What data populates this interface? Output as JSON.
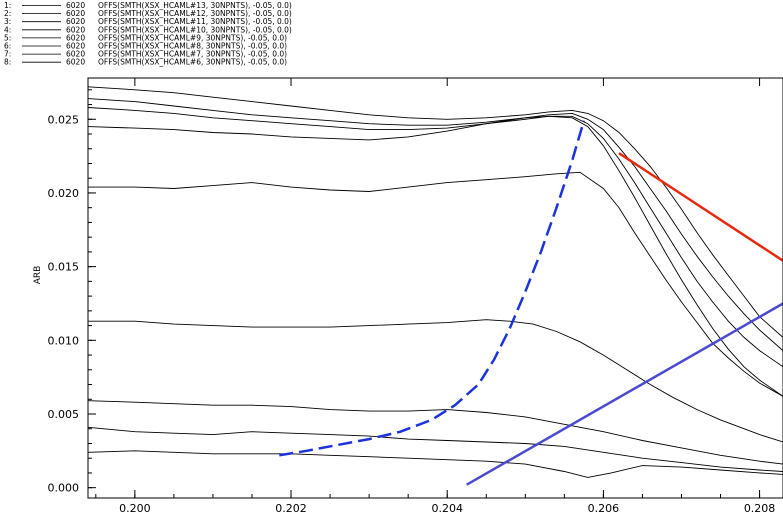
{
  "chart_data": {
    "type": "line",
    "title": "",
    "xlabel": "",
    "ylabel": "ARB",
    "xlim": [
      0.1994,
      0.2083
    ],
    "ylim": [
      -0.0007,
      0.0278
    ],
    "grid": false,
    "xticks": [
      {
        "value": 0.2,
        "label": "0.200"
      },
      {
        "value": 0.202,
        "label": "0.202"
      },
      {
        "value": 0.204,
        "label": "0.204"
      },
      {
        "value": 0.206,
        "label": "0.206"
      },
      {
        "value": 0.208,
        "label": "0.208"
      }
    ],
    "yticks": [
      {
        "value": 0.0,
        "label": "0.000"
      },
      {
        "value": 0.005,
        "label": "0.005"
      },
      {
        "value": 0.01,
        "label": "0.010"
      },
      {
        "value": 0.015,
        "label": "0.015"
      },
      {
        "value": 0.02,
        "label": "0.020"
      },
      {
        "value": 0.025,
        "label": "0.025"
      }
    ],
    "legend": [
      {
        "index": "1:",
        "shot": "6020",
        "expr": "OFFS(SMTH(XSX_HCAML#13, 30NPNTS), -0.05, 0.0)"
      },
      {
        "index": "2:",
        "shot": "6020",
        "expr": "OFFS(SMTH(XSX_HCAML#12, 30NPNTS), -0.05, 0.0)"
      },
      {
        "index": "3:",
        "shot": "6020",
        "expr": "OFFS(SMTH(XSX_HCAML#11, 30NPNTS), -0.05, 0.0)"
      },
      {
        "index": "4:",
        "shot": "6020",
        "expr": "OFFS(SMTH(XSX_HCAML#10, 30NPNTS), -0.05, 0.0)"
      },
      {
        "index": "5:",
        "shot": "6020",
        "expr": "OFFS(SMTH(XSX_HCAML#9, 30NPNTS), -0.05, 0.0)"
      },
      {
        "index": "6:",
        "shot": "6020",
        "expr": "OFFS(SMTH(XSX_HCAML#8, 30NPNTS), -0.05, 0.0)"
      },
      {
        "index": "7:",
        "shot": "6020",
        "expr": "OFFS(SMTH(XSX_HCAML#7, 30NPNTS), -0.05, 0.0)"
      },
      {
        "index": "8:",
        "shot": "6020",
        "expr": "OFFS(SMTH(XSX_HCAML#6, 30NPNTS), -0.05, 0.0)"
      }
    ],
    "series": [
      {
        "color": "#000000",
        "x": [
          0.1994,
          0.2,
          0.2005,
          0.201,
          0.2015,
          0.202,
          0.2025,
          0.203,
          0.2035,
          0.204,
          0.2045,
          0.205,
          0.2053,
          0.2056,
          0.2058,
          0.206,
          0.2062,
          0.2064,
          0.2066,
          0.2068,
          0.207,
          0.2072,
          0.2074,
          0.2076,
          0.2078,
          0.208,
          0.2083
        ],
        "y": [
          0.0272,
          0.027,
          0.0268,
          0.0265,
          0.0262,
          0.0259,
          0.0256,
          0.0253,
          0.0251,
          0.025,
          0.0251,
          0.0253,
          0.0255,
          0.0256,
          0.0254,
          0.0249,
          0.0241,
          0.023,
          0.0218,
          0.0204,
          0.0189,
          0.0173,
          0.0158,
          0.0144,
          0.013,
          0.0116,
          0.0102
        ]
      },
      {
        "color": "#000000",
        "x": [
          0.1994,
          0.2,
          0.2005,
          0.201,
          0.2015,
          0.202,
          0.2025,
          0.203,
          0.2035,
          0.204,
          0.2045,
          0.205,
          0.2053,
          0.2056,
          0.2058,
          0.206,
          0.2062,
          0.2064,
          0.2066,
          0.2068,
          0.207,
          0.2072,
          0.2074,
          0.2076,
          0.2078,
          0.208,
          0.2083
        ],
        "y": [
          0.0264,
          0.0262,
          0.0259,
          0.0256,
          0.0253,
          0.0251,
          0.0249,
          0.0247,
          0.0246,
          0.0246,
          0.0248,
          0.0251,
          0.0253,
          0.0254,
          0.025,
          0.0243,
          0.0231,
          0.0218,
          0.0203,
          0.0188,
          0.0172,
          0.0157,
          0.0143,
          0.013,
          0.0118,
          0.0107,
          0.0093
        ]
      },
      {
        "color": "#000000",
        "x": [
          0.1994,
          0.2,
          0.2005,
          0.201,
          0.2015,
          0.202,
          0.2025,
          0.203,
          0.2035,
          0.204,
          0.2045,
          0.205,
          0.2053,
          0.2056,
          0.2058,
          0.206,
          0.2062,
          0.2064,
          0.2066,
          0.2068,
          0.207,
          0.2072,
          0.2074,
          0.2076,
          0.2078,
          0.208,
          0.2083
        ],
        "y": [
          0.0258,
          0.0256,
          0.0254,
          0.0251,
          0.0249,
          0.0247,
          0.0245,
          0.0243,
          0.0243,
          0.0244,
          0.0247,
          0.025,
          0.0252,
          0.0252,
          0.0247,
          0.0237,
          0.0223,
          0.0207,
          0.019,
          0.0173,
          0.0156,
          0.014,
          0.0126,
          0.0113,
          0.0102,
          0.0093,
          0.0082
        ]
      },
      {
        "color": "#000000",
        "x": [
          0.1994,
          0.2,
          0.2005,
          0.201,
          0.2015,
          0.202,
          0.2025,
          0.203,
          0.2035,
          0.204,
          0.2045,
          0.205,
          0.2053,
          0.2056,
          0.2058,
          0.206,
          0.2062,
          0.2064,
          0.2066,
          0.2068,
          0.207,
          0.2072,
          0.2074,
          0.2076,
          0.2078,
          0.208,
          0.2083
        ],
        "y": [
          0.0245,
          0.0244,
          0.0243,
          0.0241,
          0.024,
          0.0238,
          0.0237,
          0.0236,
          0.0238,
          0.0242,
          0.0247,
          0.0251,
          0.0252,
          0.0251,
          0.0245,
          0.0232,
          0.0215,
          0.0197,
          0.0178,
          0.0159,
          0.0141,
          0.0124,
          0.0108,
          0.0094,
          0.0082,
          0.0073,
          0.0062
        ]
      },
      {
        "color": "#000000",
        "x": [
          0.1994,
          0.2,
          0.2005,
          0.201,
          0.2015,
          0.202,
          0.2025,
          0.203,
          0.2035,
          0.204,
          0.2045,
          0.205,
          0.2054,
          0.2057,
          0.206,
          0.2062,
          0.2064,
          0.2066,
          0.2068,
          0.207,
          0.2072,
          0.2074,
          0.2076,
          0.2078,
          0.208,
          0.2083
        ],
        "y": [
          0.0204,
          0.0204,
          0.0203,
          0.0205,
          0.0207,
          0.0204,
          0.0202,
          0.0201,
          0.0204,
          0.0207,
          0.0209,
          0.0211,
          0.0213,
          0.0214,
          0.0203,
          0.019,
          0.0173,
          0.0157,
          0.0141,
          0.0126,
          0.0112,
          0.0098,
          0.0088,
          0.0079,
          0.0071,
          0.0062
        ]
      },
      {
        "color": "#000000",
        "x": [
          0.1994,
          0.2,
          0.2005,
          0.201,
          0.2015,
          0.202,
          0.2025,
          0.203,
          0.2035,
          0.204,
          0.2045,
          0.2048,
          0.2051,
          0.2054,
          0.2057,
          0.206,
          0.2063,
          0.2066,
          0.2069,
          0.2072,
          0.2075,
          0.2078,
          0.208,
          0.2083
        ],
        "y": [
          0.0113,
          0.0113,
          0.0111,
          0.011,
          0.0109,
          0.0109,
          0.0109,
          0.011,
          0.0111,
          0.0112,
          0.0114,
          0.0113,
          0.0111,
          0.0106,
          0.0099,
          0.009,
          0.008,
          0.007,
          0.0061,
          0.0053,
          0.0046,
          0.004,
          0.0036,
          0.0031
        ]
      },
      {
        "color": "#000000",
        "x": [
          0.1994,
          0.2,
          0.2005,
          0.201,
          0.2015,
          0.202,
          0.2025,
          0.203,
          0.2035,
          0.204,
          0.2045,
          0.205,
          0.2055,
          0.206,
          0.2065,
          0.207,
          0.2075,
          0.208,
          0.2083
        ],
        "y": [
          0.0059,
          0.0058,
          0.0057,
          0.0056,
          0.0056,
          0.0055,
          0.0053,
          0.0052,
          0.0052,
          0.0053,
          0.0051,
          0.0048,
          0.0043,
          0.0038,
          0.0032,
          0.0027,
          0.0022,
          0.0018,
          0.0016
        ]
      },
      {
        "color": "#000000",
        "x": [
          0.1994,
          0.2,
          0.2005,
          0.201,
          0.2015,
          0.202,
          0.2025,
          0.203,
          0.2035,
          0.204,
          0.2045,
          0.205,
          0.2055,
          0.206,
          0.2065,
          0.207,
          0.2075,
          0.208,
          0.2083
        ],
        "y": [
          0.0041,
          0.0038,
          0.0037,
          0.0036,
          0.0038,
          0.0037,
          0.0036,
          0.0035,
          0.0033,
          0.0032,
          0.0031,
          0.003,
          0.0028,
          0.0024,
          0.002,
          0.0017,
          0.0014,
          0.0012,
          0.0011
        ]
      },
      {
        "color": "#000000",
        "x": [
          0.1994,
          0.2,
          0.2005,
          0.201,
          0.2015,
          0.202,
          0.2025,
          0.203,
          0.2035,
          0.204,
          0.2045,
          0.205,
          0.2055,
          0.2058,
          0.2061,
          0.2065,
          0.207,
          0.2075,
          0.208,
          0.2083
        ],
        "y": [
          0.0024,
          0.0025,
          0.0024,
          0.0023,
          0.0023,
          0.0023,
          0.0022,
          0.0021,
          0.002,
          0.0019,
          0.0018,
          0.0016,
          0.0011,
          0.0007,
          0.001,
          0.0015,
          0.0014,
          0.0012,
          0.001,
          0.0009
        ]
      }
    ],
    "overlays": [
      {
        "style": "dashed",
        "color": "#1a33dd",
        "x": [
          0.20185,
          0.2022,
          0.2026,
          0.203,
          0.2034,
          0.2038,
          0.2041,
          0.2044,
          0.2046,
          0.2048,
          0.205,
          0.2052,
          0.2054,
          0.2056,
          0.20575
        ],
        "y": [
          0.0022,
          0.0025,
          0.0029,
          0.0033,
          0.0038,
          0.0046,
          0.0056,
          0.007,
          0.0087,
          0.0108,
          0.0133,
          0.016,
          0.019,
          0.0222,
          0.0249
        ]
      },
      {
        "style": "solid",
        "color": "#e8280a",
        "x": [
          0.2062,
          0.2083
        ],
        "y": [
          0.0227,
          0.0154
        ]
      },
      {
        "style": "solid",
        "color": "#4a4ad0",
        "x": [
          0.20425,
          0.2083
        ],
        "y": [
          0.0002,
          0.0125
        ]
      }
    ]
  }
}
